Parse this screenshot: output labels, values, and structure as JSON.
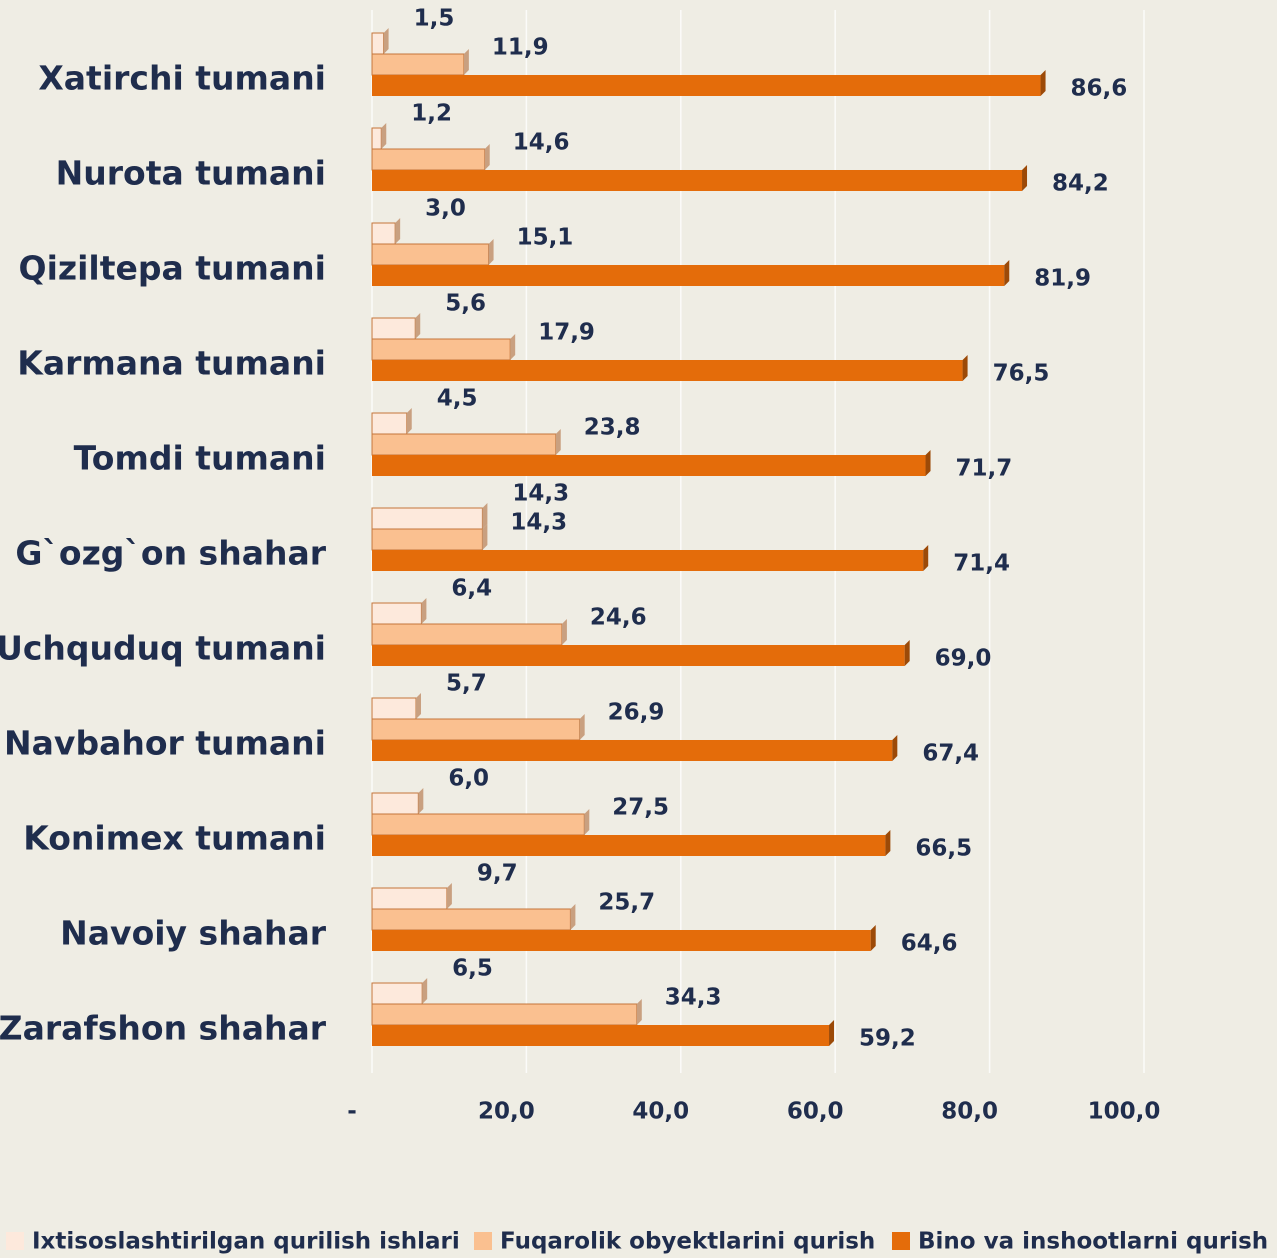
{
  "chart_data": {
    "type": "bar",
    "orientation": "horizontal",
    "categories": [
      "Xatirchi tumani",
      "Nurota tumani",
      "Qiziltepa tumani",
      "Karmana tumani",
      "Tomdi tumani",
      "G`ozg`on shahar",
      "Uchquduq tumani",
      "Navbahor tumani",
      "Konimex tumani",
      "Navoiy shahar",
      "Zarafshon shahar"
    ],
    "series": [
      {
        "name": "Ixtisoslashtirilgan qurilish ishlari",
        "color": "#fde9dc",
        "values": [
          1.5,
          1.2,
          3.0,
          5.6,
          4.5,
          14.3,
          6.4,
          5.7,
          6.0,
          9.7,
          6.5
        ],
        "value_labels": [
          "1,5",
          "1,2",
          "3,0",
          "5,6",
          "4,5",
          "14,3",
          "6,4",
          "5,7",
          "6,0",
          "9,7",
          "6,5"
        ]
      },
      {
        "name": "Fuqarolik obyektlarini qurish",
        "color": "#fac090",
        "values": [
          11.9,
          14.6,
          15.1,
          17.9,
          23.8,
          14.3,
          24.6,
          26.9,
          27.5,
          25.7,
          34.3
        ],
        "value_labels": [
          "11,9",
          "14,6",
          "15,1",
          "17,9",
          "23,8",
          "14,3",
          "24,6",
          "26,9",
          "27,5",
          "25,7",
          "34,3"
        ]
      },
      {
        "name": "Bino va inshootlarni qurish",
        "color": "#e46c0a",
        "values": [
          86.6,
          84.2,
          81.9,
          76.5,
          71.7,
          71.4,
          69.0,
          67.4,
          66.5,
          64.6,
          59.2
        ],
        "value_labels": [
          "86,6",
          "84,2",
          "81,9",
          "76,5",
          "71,7",
          "71,4",
          "69,0",
          "67,4",
          "66,5",
          "64,6",
          "59,2"
        ]
      }
    ],
    "xlim": [
      0,
      100
    ],
    "xticks": [
      {
        "value": 0,
        "label": "-"
      },
      {
        "value": 20,
        "label": "20,0"
      },
      {
        "value": 40,
        "label": "40,0"
      },
      {
        "value": 60,
        "label": "60,0"
      },
      {
        "value": 80,
        "label": "80,0"
      },
      {
        "value": 100,
        "label": "100,0"
      }
    ],
    "grid": true,
    "legend": "bottom"
  }
}
